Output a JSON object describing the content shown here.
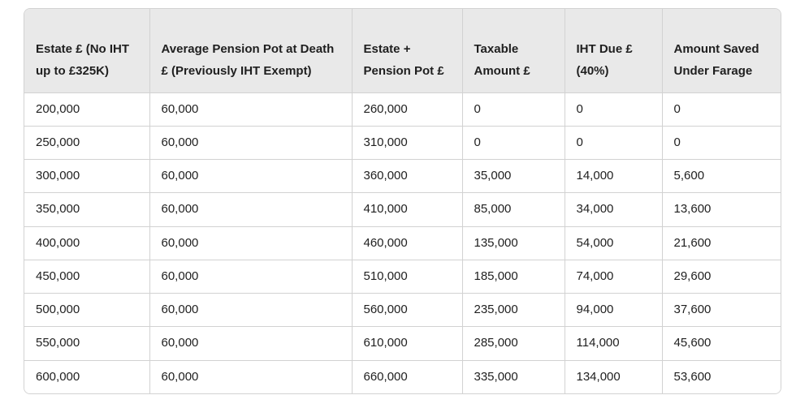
{
  "page": {
    "background": "#ffffff"
  },
  "table_style": {
    "header_bg": "#e9e9e9",
    "body_bg": "#ffffff",
    "border_color": "#d2d2d2",
    "text_color": "#1f1f1f"
  },
  "chart_data": {
    "type": "table",
    "columns": [
      "Estate £ (No IHT up to £325K)",
      "Average Pension Pot at Death £ (Previously IHT Exempt)",
      "Estate + Pension Pot £",
      "Taxable Amount £",
      "IHT Due £ (40%)",
      "Amount Saved Under Farage"
    ],
    "rows": [
      [
        "200,000",
        "60,000",
        "260,000",
        "0",
        "0",
        "0"
      ],
      [
        "250,000",
        "60,000",
        "310,000",
        "0",
        "0",
        "0"
      ],
      [
        "300,000",
        "60,000",
        "360,000",
        "35,000",
        "14,000",
        "5,600"
      ],
      [
        "350,000",
        "60,000",
        "410,000",
        "85,000",
        "34,000",
        "13,600"
      ],
      [
        "400,000",
        "60,000",
        "460,000",
        "135,000",
        "54,000",
        "21,600"
      ],
      [
        "450,000",
        "60,000",
        "510,000",
        "185,000",
        "74,000",
        "29,600"
      ],
      [
        "500,000",
        "60,000",
        "560,000",
        "235,000",
        "94,000",
        "37,600"
      ],
      [
        "550,000",
        "60,000",
        "610,000",
        "285,000",
        "114,000",
        "45,600"
      ],
      [
        "600,000",
        "60,000",
        "660,000",
        "335,000",
        "134,000",
        "53,600"
      ]
    ]
  }
}
